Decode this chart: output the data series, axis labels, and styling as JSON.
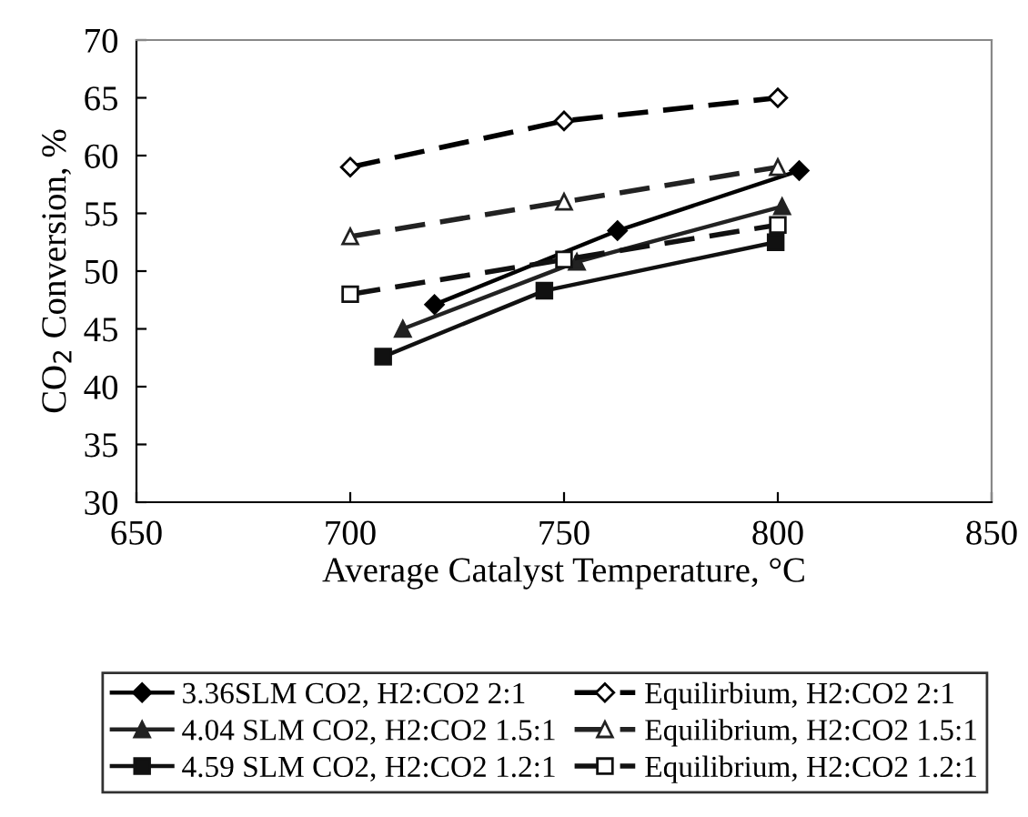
{
  "chart_data": {
    "type": "line",
    "xlabel": "Average Catalyst Temperature, °C",
    "ylabel": "CO$_{2}$ Conversion, %",
    "xlim": [
      650,
      850
    ],
    "xticks": [
      650,
      700,
      750,
      800,
      850
    ],
    "ylim": [
      30,
      70
    ],
    "yticks": [
      30,
      35,
      40,
      45,
      50,
      55,
      60,
      65,
      70
    ],
    "grid": false,
    "legend": "bottom",
    "series": [
      {
        "name": "3.36SLM CO2, H2:CO2 2:1",
        "color": "#000000",
        "x": [
          719.7,
          762.5,
          805
        ],
        "values": [
          47.1,
          53.5,
          58.7
        ],
        "marker": "diamond",
        "line_style": "solid"
      },
      {
        "name": "Equilirbium, H2:CO2 2:1",
        "color": "#000000",
        "x": [
          700,
          750,
          800
        ],
        "values": [
          59,
          63,
          65
        ],
        "marker": "diamond",
        "line_style": "dashed"
      },
      {
        "name": "4.04 SLM CO2, H2:CO2 1.5:1",
        "color": "#222222",
        "x": [
          712.3,
          753,
          801
        ],
        "values": [
          45.0,
          50.8,
          55.6
        ],
        "marker": "triangle",
        "line_style": "solid"
      },
      {
        "name": "Equilibrium, H2:CO2 1.5:1",
        "color": "#222222",
        "x": [
          700,
          750,
          800
        ],
        "values": [
          53,
          56,
          59
        ],
        "marker": "triangle",
        "line_style": "dashed"
      },
      {
        "name": "4.59 SLM CO2, H2:CO2 1.2:1",
        "color": "#111111",
        "x": [
          707.7,
          745.4,
          799.5
        ],
        "values": [
          42.6,
          48.3,
          52.5
        ],
        "marker": "square",
        "line_style": "solid"
      },
      {
        "name": "Equilibrium, H2:CO2 1.2:1",
        "color": "#111111",
        "x": [
          700,
          750,
          800
        ],
        "values": [
          48,
          51,
          54
        ],
        "marker": "square",
        "line_style": "dashed"
      }
    ]
  }
}
